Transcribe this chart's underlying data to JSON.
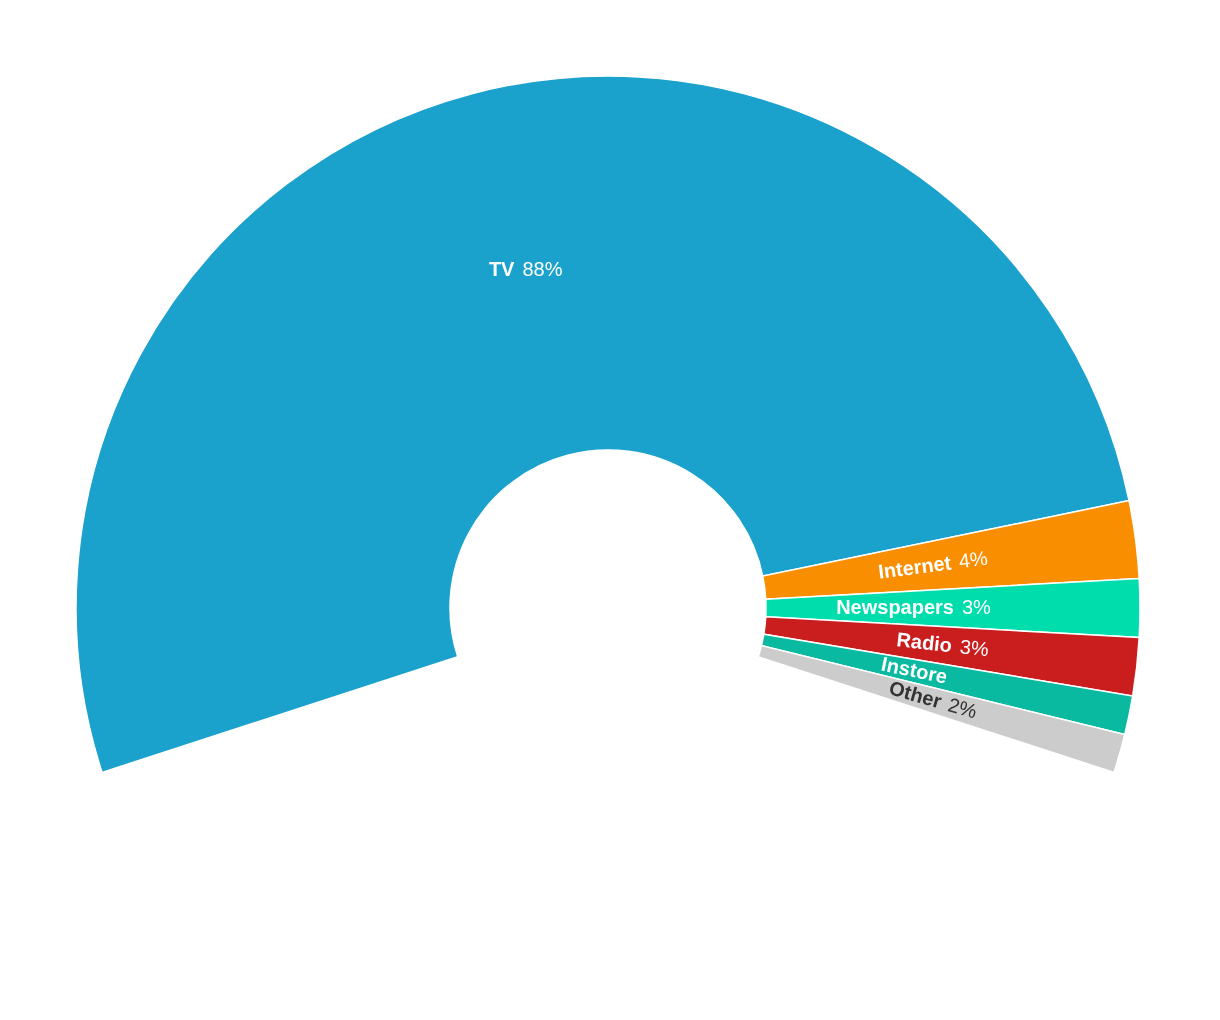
{
  "chart_data": {
    "type": "donut",
    "categories": [
      "TV",
      "Internet",
      "Newspapers",
      "Radio",
      "Instore",
      "Other"
    ],
    "values": [
      88,
      4,
      3,
      3,
      2,
      2
    ],
    "colors": [
      "#1aa1cc",
      "#f98e00",
      "#00ddac",
      "#c91d1e",
      "#0abaa0",
      "#cccccc"
    ],
    "value_labels": [
      "88%",
      "4%",
      "3%",
      "3%",
      null,
      "2%"
    ]
  }
}
